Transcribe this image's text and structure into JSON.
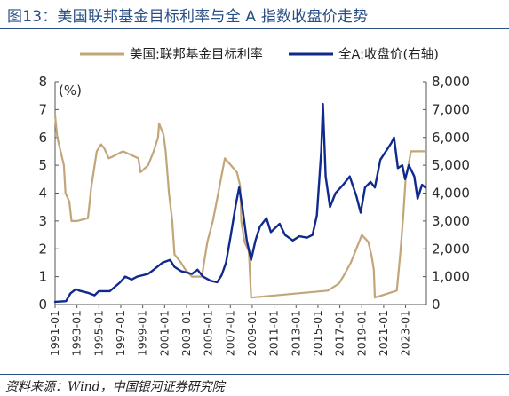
{
  "header": {
    "title": "图13：美国联邦基金目标利率与全 A 指数收盘价走势"
  },
  "footer": {
    "source": "资料来源：Wind，中国银河证券研究院"
  },
  "colors": {
    "title": "#2a4f86",
    "fed_series": "#c2a67a",
    "index_series": "#0f2a8c"
  },
  "chart_data": {
    "type": "line",
    "left_axis": {
      "unit_label": "(%)",
      "ylim": [
        0,
        8
      ],
      "ticks": [
        "0",
        "1",
        "2",
        "3",
        "4",
        "5",
        "6",
        "7",
        "8"
      ]
    },
    "right_axis": {
      "ylim": [
        0,
        8000
      ],
      "ticks": [
        "0",
        "1,000",
        "2,000",
        "3,000",
        "4,000",
        "5,000",
        "6,000",
        "7,000",
        "8,000"
      ]
    },
    "x_axis": {
      "range": [
        1991.0,
        2024.9
      ],
      "tick_labels": [
        "1991-01",
        "1993-01",
        "1995-01",
        "1997-01",
        "1999-01",
        "2001-01",
        "2003-01",
        "2005-01",
        "2007-01",
        "2009-01",
        "2011-01",
        "2013-01",
        "2015-01",
        "2017-01",
        "2019-01",
        "2021-01",
        "2023-01"
      ]
    },
    "legend": {
      "placement": "top"
    },
    "series": [
      {
        "name": "美国:联邦基金目标利率",
        "axis": "left",
        "color": "#c2a67a",
        "points": [
          [
            1991.0,
            6.8
          ],
          [
            1991.2,
            6.0
          ],
          [
            1991.5,
            5.5
          ],
          [
            1991.8,
            5.0
          ],
          [
            1991.95,
            4.0
          ],
          [
            1992.3,
            3.7
          ],
          [
            1992.5,
            3.0
          ],
          [
            1993.0,
            3.0
          ],
          [
            1994.0,
            3.1
          ],
          [
            1994.3,
            4.2
          ],
          [
            1994.8,
            5.5
          ],
          [
            1995.2,
            5.75
          ],
          [
            1995.5,
            5.6
          ],
          [
            1995.9,
            5.25
          ],
          [
            1996.2,
            5.3
          ],
          [
            1997.2,
            5.5
          ],
          [
            1998.6,
            5.25
          ],
          [
            1998.8,
            4.75
          ],
          [
            1999.5,
            5.0
          ],
          [
            2000.0,
            5.5
          ],
          [
            2000.4,
            6.0
          ],
          [
            2000.5,
            6.5
          ],
          [
            2000.9,
            6.1
          ],
          [
            2001.1,
            5.5
          ],
          [
            2001.4,
            4.0
          ],
          [
            2001.7,
            3.0
          ],
          [
            2001.9,
            1.8
          ],
          [
            2002.5,
            1.5
          ],
          [
            2002.9,
            1.25
          ],
          [
            2003.5,
            1.0
          ],
          [
            2004.4,
            1.0
          ],
          [
            2004.9,
            2.25
          ],
          [
            2005.4,
            3.0
          ],
          [
            2005.9,
            4.0
          ],
          [
            2006.5,
            5.25
          ],
          [
            2007.6,
            4.75
          ],
          [
            2007.9,
            4.25
          ],
          [
            2008.0,
            3.0
          ],
          [
            2008.3,
            2.25
          ],
          [
            2008.7,
            1.9
          ],
          [
            2008.9,
            0.25
          ],
          [
            2015.9,
            0.5
          ],
          [
            2016.9,
            0.75
          ],
          [
            2017.3,
            1.0
          ],
          [
            2018.0,
            1.5
          ],
          [
            2018.5,
            2.0
          ],
          [
            2019.0,
            2.5
          ],
          [
            2019.6,
            2.25
          ],
          [
            2019.9,
            1.75
          ],
          [
            2020.1,
            1.25
          ],
          [
            2020.2,
            0.25
          ],
          [
            2022.2,
            0.5
          ],
          [
            2022.5,
            1.75
          ],
          [
            2022.8,
            3.25
          ],
          [
            2023.0,
            4.5
          ],
          [
            2023.5,
            5.5
          ],
          [
            2024.7,
            5.5
          ]
        ]
      },
      {
        "name": "全A:收盘价(右轴)",
        "axis": "right",
        "color": "#0f2a8c",
        "points": [
          [
            1991.0,
            100
          ],
          [
            1992.0,
            120
          ],
          [
            1992.4,
            400
          ],
          [
            1992.9,
            550
          ],
          [
            1993.2,
            500
          ],
          [
            1994.0,
            420
          ],
          [
            1994.6,
            330
          ],
          [
            1995.0,
            480
          ],
          [
            1996.0,
            480
          ],
          [
            1996.9,
            780
          ],
          [
            1997.4,
            1000
          ],
          [
            1998.0,
            900
          ],
          [
            1998.5,
            1000
          ],
          [
            1999.5,
            1100
          ],
          [
            2000.0,
            1250
          ],
          [
            2000.8,
            1500
          ],
          [
            2001.5,
            1600
          ],
          [
            2001.9,
            1350
          ],
          [
            2002.5,
            1200
          ],
          [
            2003.0,
            1150
          ],
          [
            2003.5,
            1100
          ],
          [
            2004.0,
            1250
          ],
          [
            2004.5,
            1000
          ],
          [
            2005.2,
            850
          ],
          [
            2005.8,
            800
          ],
          [
            2006.2,
            1050
          ],
          [
            2006.6,
            1500
          ],
          [
            2007.0,
            2400
          ],
          [
            2007.5,
            3600
          ],
          [
            2007.8,
            4200
          ],
          [
            2008.1,
            3500
          ],
          [
            2008.5,
            2300
          ],
          [
            2008.9,
            1600
          ],
          [
            2009.3,
            2300
          ],
          [
            2009.7,
            2800
          ],
          [
            2010.3,
            3100
          ],
          [
            2010.7,
            2600
          ],
          [
            2011.5,
            2900
          ],
          [
            2012.0,
            2500
          ],
          [
            2012.7,
            2300
          ],
          [
            2013.3,
            2450
          ],
          [
            2014.0,
            2400
          ],
          [
            2014.5,
            2500
          ],
          [
            2014.9,
            3200
          ],
          [
            2015.3,
            5500
          ],
          [
            2015.45,
            7200
          ],
          [
            2015.7,
            4600
          ],
          [
            2016.1,
            3500
          ],
          [
            2016.6,
            4000
          ],
          [
            2017.3,
            4300
          ],
          [
            2017.9,
            4600
          ],
          [
            2018.5,
            3900
          ],
          [
            2018.9,
            3300
          ],
          [
            2019.3,
            4200
          ],
          [
            2019.8,
            4400
          ],
          [
            2020.2,
            4200
          ],
          [
            2020.7,
            5200
          ],
          [
            2021.2,
            5500
          ],
          [
            2021.7,
            5800
          ],
          [
            2021.95,
            6000
          ],
          [
            2022.3,
            4900
          ],
          [
            2022.7,
            5000
          ],
          [
            2022.95,
            4500
          ],
          [
            2023.3,
            5000
          ],
          [
            2023.8,
            4600
          ],
          [
            2024.1,
            3800
          ],
          [
            2024.5,
            4300
          ],
          [
            2024.8,
            4200
          ]
        ]
      }
    ]
  }
}
